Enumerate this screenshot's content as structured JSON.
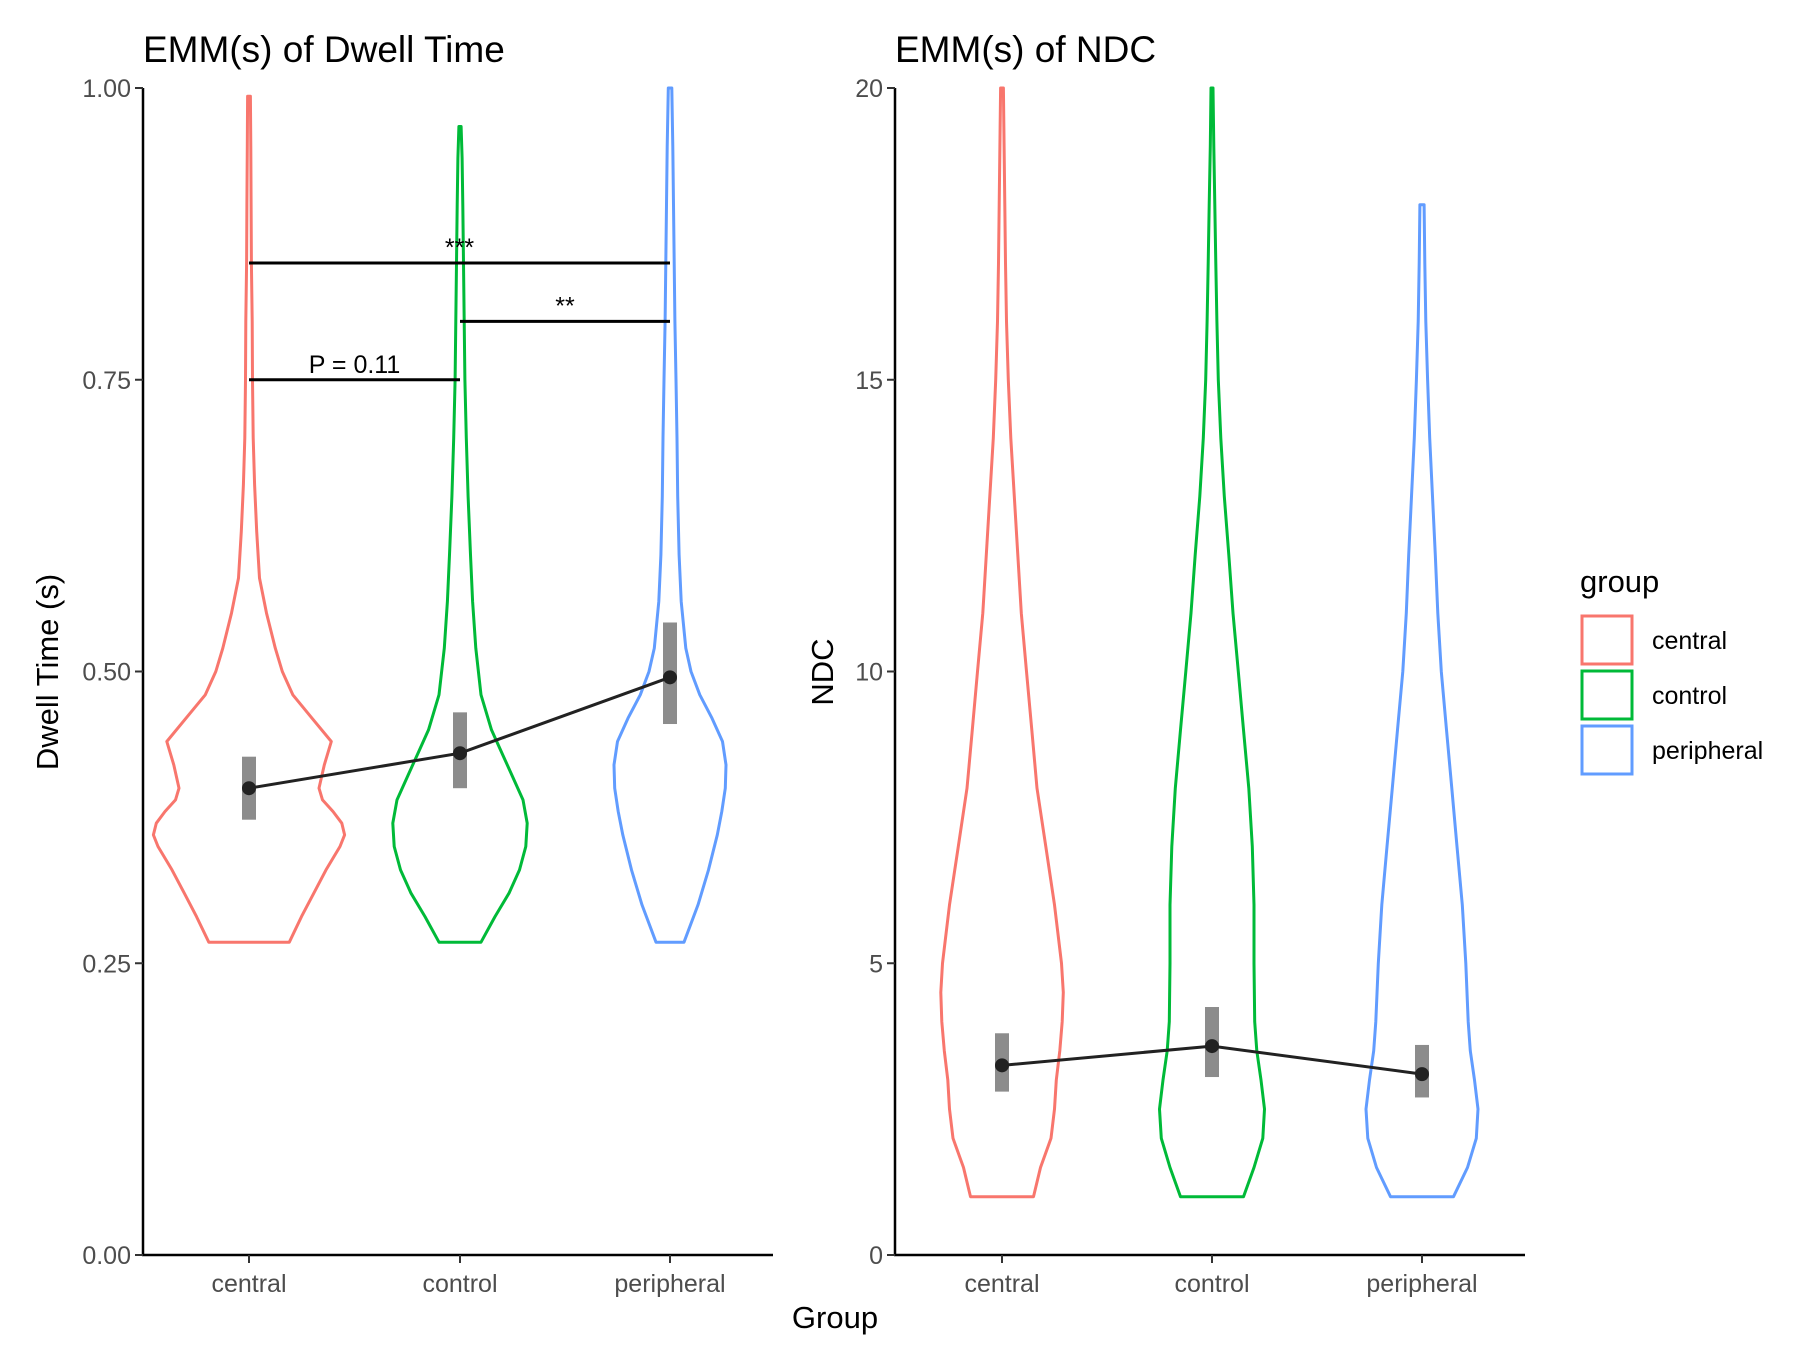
{
  "figure": {
    "shared_xlabel": "Group"
  },
  "legend": {
    "title": "group",
    "items": [
      {
        "label": "central",
        "color": "#F8766D"
      },
      {
        "label": "control",
        "color": "#00BA38"
      },
      {
        "label": "peripheral",
        "color": "#619CFF"
      }
    ]
  },
  "chart_data": [
    {
      "type": "violin",
      "title": "EMM(s) of Dwell Time",
      "xlabel": "Group",
      "ylabel": "Dwell Time (s)",
      "categories": [
        "central",
        "control",
        "peripheral"
      ],
      "ylim": [
        0,
        1
      ],
      "yticks": [
        "0.00",
        "0.25",
        "0.50",
        "0.75",
        "1.00"
      ],
      "ytick_values": [
        0,
        0.25,
        0.5,
        0.75,
        1.0
      ],
      "grid": false,
      "legend_position": "right",
      "emm": [
        {
          "group": "central",
          "mean": 0.4,
          "lower": 0.373,
          "upper": 0.427
        },
        {
          "group": "control",
          "mean": 0.43,
          "lower": 0.4,
          "upper": 0.465
        },
        {
          "group": "peripheral",
          "mean": 0.495,
          "lower": 0.455,
          "upper": 0.542
        }
      ],
      "violins": [
        {
          "group": "central",
          "color": "#F8766D",
          "range": [
            0.268,
            0.993
          ],
          "profile": [
            [
              0.268,
              0.115
            ],
            [
              0.29,
              0.15
            ],
            [
              0.31,
              0.185
            ],
            [
              0.33,
              0.22
            ],
            [
              0.35,
              0.26
            ],
            [
              0.36,
              0.273
            ],
            [
              0.37,
              0.265
            ],
            [
              0.38,
              0.24
            ],
            [
              0.39,
              0.21
            ],
            [
              0.4,
              0.2
            ],
            [
              0.42,
              0.215
            ],
            [
              0.44,
              0.235
            ],
            [
              0.46,
              0.18
            ],
            [
              0.48,
              0.125
            ],
            [
              0.5,
              0.095
            ],
            [
              0.52,
              0.075
            ],
            [
              0.55,
              0.05
            ],
            [
              0.58,
              0.03
            ],
            [
              0.62,
              0.022
            ],
            [
              0.66,
              0.016
            ],
            [
              0.7,
              0.012
            ],
            [
              0.75,
              0.01
            ],
            [
              0.8,
              0.009
            ],
            [
              0.85,
              0.007
            ],
            [
              0.9,
              0.006
            ],
            [
              0.95,
              0.005
            ],
            [
              0.993,
              0.004
            ]
          ]
        },
        {
          "group": "control",
          "color": "#00BA38",
          "range": [
            0.268,
            0.967
          ],
          "profile": [
            [
              0.268,
              0.06
            ],
            [
              0.29,
              0.1
            ],
            [
              0.31,
              0.14
            ],
            [
              0.33,
              0.17
            ],
            [
              0.35,
              0.188
            ],
            [
              0.37,
              0.192
            ],
            [
              0.39,
              0.18
            ],
            [
              0.41,
              0.15
            ],
            [
              0.43,
              0.12
            ],
            [
              0.45,
              0.09
            ],
            [
              0.48,
              0.06
            ],
            [
              0.52,
              0.045
            ],
            [
              0.56,
              0.036
            ],
            [
              0.6,
              0.03
            ],
            [
              0.65,
              0.023
            ],
            [
              0.7,
              0.018
            ],
            [
              0.75,
              0.014
            ],
            [
              0.8,
              0.012
            ],
            [
              0.85,
              0.01
            ],
            [
              0.9,
              0.008
            ],
            [
              0.94,
              0.006
            ],
            [
              0.967,
              0.003
            ]
          ]
        },
        {
          "group": "peripheral",
          "color": "#619CFF",
          "range": [
            0.268,
            1.0
          ],
          "profile": [
            [
              0.268,
              0.04
            ],
            [
              0.3,
              0.08
            ],
            [
              0.33,
              0.11
            ],
            [
              0.36,
              0.135
            ],
            [
              0.38,
              0.148
            ],
            [
              0.4,
              0.158
            ],
            [
              0.42,
              0.16
            ],
            [
              0.44,
              0.15
            ],
            [
              0.46,
              0.12
            ],
            [
              0.48,
              0.085
            ],
            [
              0.5,
              0.06
            ],
            [
              0.52,
              0.045
            ],
            [
              0.56,
              0.032
            ],
            [
              0.6,
              0.026
            ],
            [
              0.65,
              0.022
            ],
            [
              0.7,
              0.02
            ],
            [
              0.75,
              0.017
            ],
            [
              0.8,
              0.014
            ],
            [
              0.85,
              0.012
            ],
            [
              0.9,
              0.01
            ],
            [
              0.95,
              0.008
            ],
            [
              1.0,
              0.005
            ]
          ]
        }
      ],
      "annotations": [
        {
          "label": "***",
          "x_from": "central",
          "x_to": "peripheral",
          "y": 0.85
        },
        {
          "label": "**",
          "x_from": "control",
          "x_to": "peripheral",
          "y": 0.8
        },
        {
          "label": "P = 0.11",
          "x_from": "central",
          "x_to": "control",
          "y": 0.75
        }
      ]
    },
    {
      "type": "violin",
      "title": "EMM(s) of NDC",
      "xlabel": "Group",
      "ylabel": "NDC",
      "categories": [
        "central",
        "control",
        "peripheral"
      ],
      "ylim": [
        0,
        20
      ],
      "yticks": [
        "0",
        "5",
        "10",
        "15",
        "20"
      ],
      "ytick_values": [
        0,
        5,
        10,
        15,
        20
      ],
      "grid": false,
      "legend_position": "right",
      "emm": [
        {
          "group": "central",
          "mean": 3.25,
          "lower": 2.8,
          "upper": 3.8
        },
        {
          "group": "control",
          "mean": 3.58,
          "lower": 3.05,
          "upper": 4.25
        },
        {
          "group": "peripheral",
          "mean": 3.1,
          "lower": 2.7,
          "upper": 3.6
        }
      ],
      "violins": [
        {
          "group": "central",
          "color": "#F8766D",
          "range": [
            1,
            20
          ],
          "profile": [
            [
              1,
              0.09
            ],
            [
              1.5,
              0.11
            ],
            [
              2,
              0.14
            ],
            [
              2.5,
              0.15
            ],
            [
              3,
              0.155
            ],
            [
              3.5,
              0.165
            ],
            [
              4,
              0.172
            ],
            [
              4.5,
              0.175
            ],
            [
              5,
              0.17
            ],
            [
              5.5,
              0.16
            ],
            [
              6,
              0.15
            ],
            [
              7,
              0.125
            ],
            [
              8,
              0.1
            ],
            [
              9,
              0.085
            ],
            [
              10,
              0.07
            ],
            [
              11,
              0.055
            ],
            [
              12,
              0.045
            ],
            [
              13,
              0.035
            ],
            [
              14,
              0.025
            ],
            [
              15,
              0.018
            ],
            [
              16,
              0.013
            ],
            [
              17,
              0.01
            ],
            [
              18,
              0.008
            ],
            [
              19,
              0.006
            ],
            [
              20,
              0.004
            ]
          ]
        },
        {
          "group": "control",
          "color": "#00BA38",
          "range": [
            1,
            20
          ],
          "profile": [
            [
              1,
              0.09
            ],
            [
              1.5,
              0.12
            ],
            [
              2,
              0.145
            ],
            [
              2.5,
              0.15
            ],
            [
              3,
              0.14
            ],
            [
              3.5,
              0.128
            ],
            [
              4,
              0.122
            ],
            [
              5,
              0.12
            ],
            [
              6,
              0.12
            ],
            [
              7,
              0.115
            ],
            [
              8,
              0.105
            ],
            [
              9,
              0.09
            ],
            [
              10,
              0.075
            ],
            [
              11,
              0.06
            ],
            [
              12,
              0.048
            ],
            [
              13,
              0.035
            ],
            [
              14,
              0.025
            ],
            [
              15,
              0.018
            ],
            [
              16,
              0.014
            ],
            [
              17,
              0.011
            ],
            [
              18,
              0.008
            ],
            [
              19,
              0.005
            ],
            [
              20,
              0.003
            ]
          ]
        },
        {
          "group": "peripheral",
          "color": "#619CFF",
          "range": [
            1,
            18
          ],
          "profile": [
            [
              1,
              0.09
            ],
            [
              1.5,
              0.13
            ],
            [
              2,
              0.155
            ],
            [
              2.5,
              0.16
            ],
            [
              3,
              0.15
            ],
            [
              3.5,
              0.138
            ],
            [
              4,
              0.132
            ],
            [
              5,
              0.125
            ],
            [
              6,
              0.115
            ],
            [
              7,
              0.1
            ],
            [
              8,
              0.085
            ],
            [
              9,
              0.07
            ],
            [
              10,
              0.055
            ],
            [
              11,
              0.045
            ],
            [
              12,
              0.038
            ],
            [
              13,
              0.03
            ],
            [
              14,
              0.022
            ],
            [
              15,
              0.016
            ],
            [
              16,
              0.011
            ],
            [
              17,
              0.008
            ],
            [
              18,
              0.006
            ]
          ]
        }
      ]
    }
  ]
}
